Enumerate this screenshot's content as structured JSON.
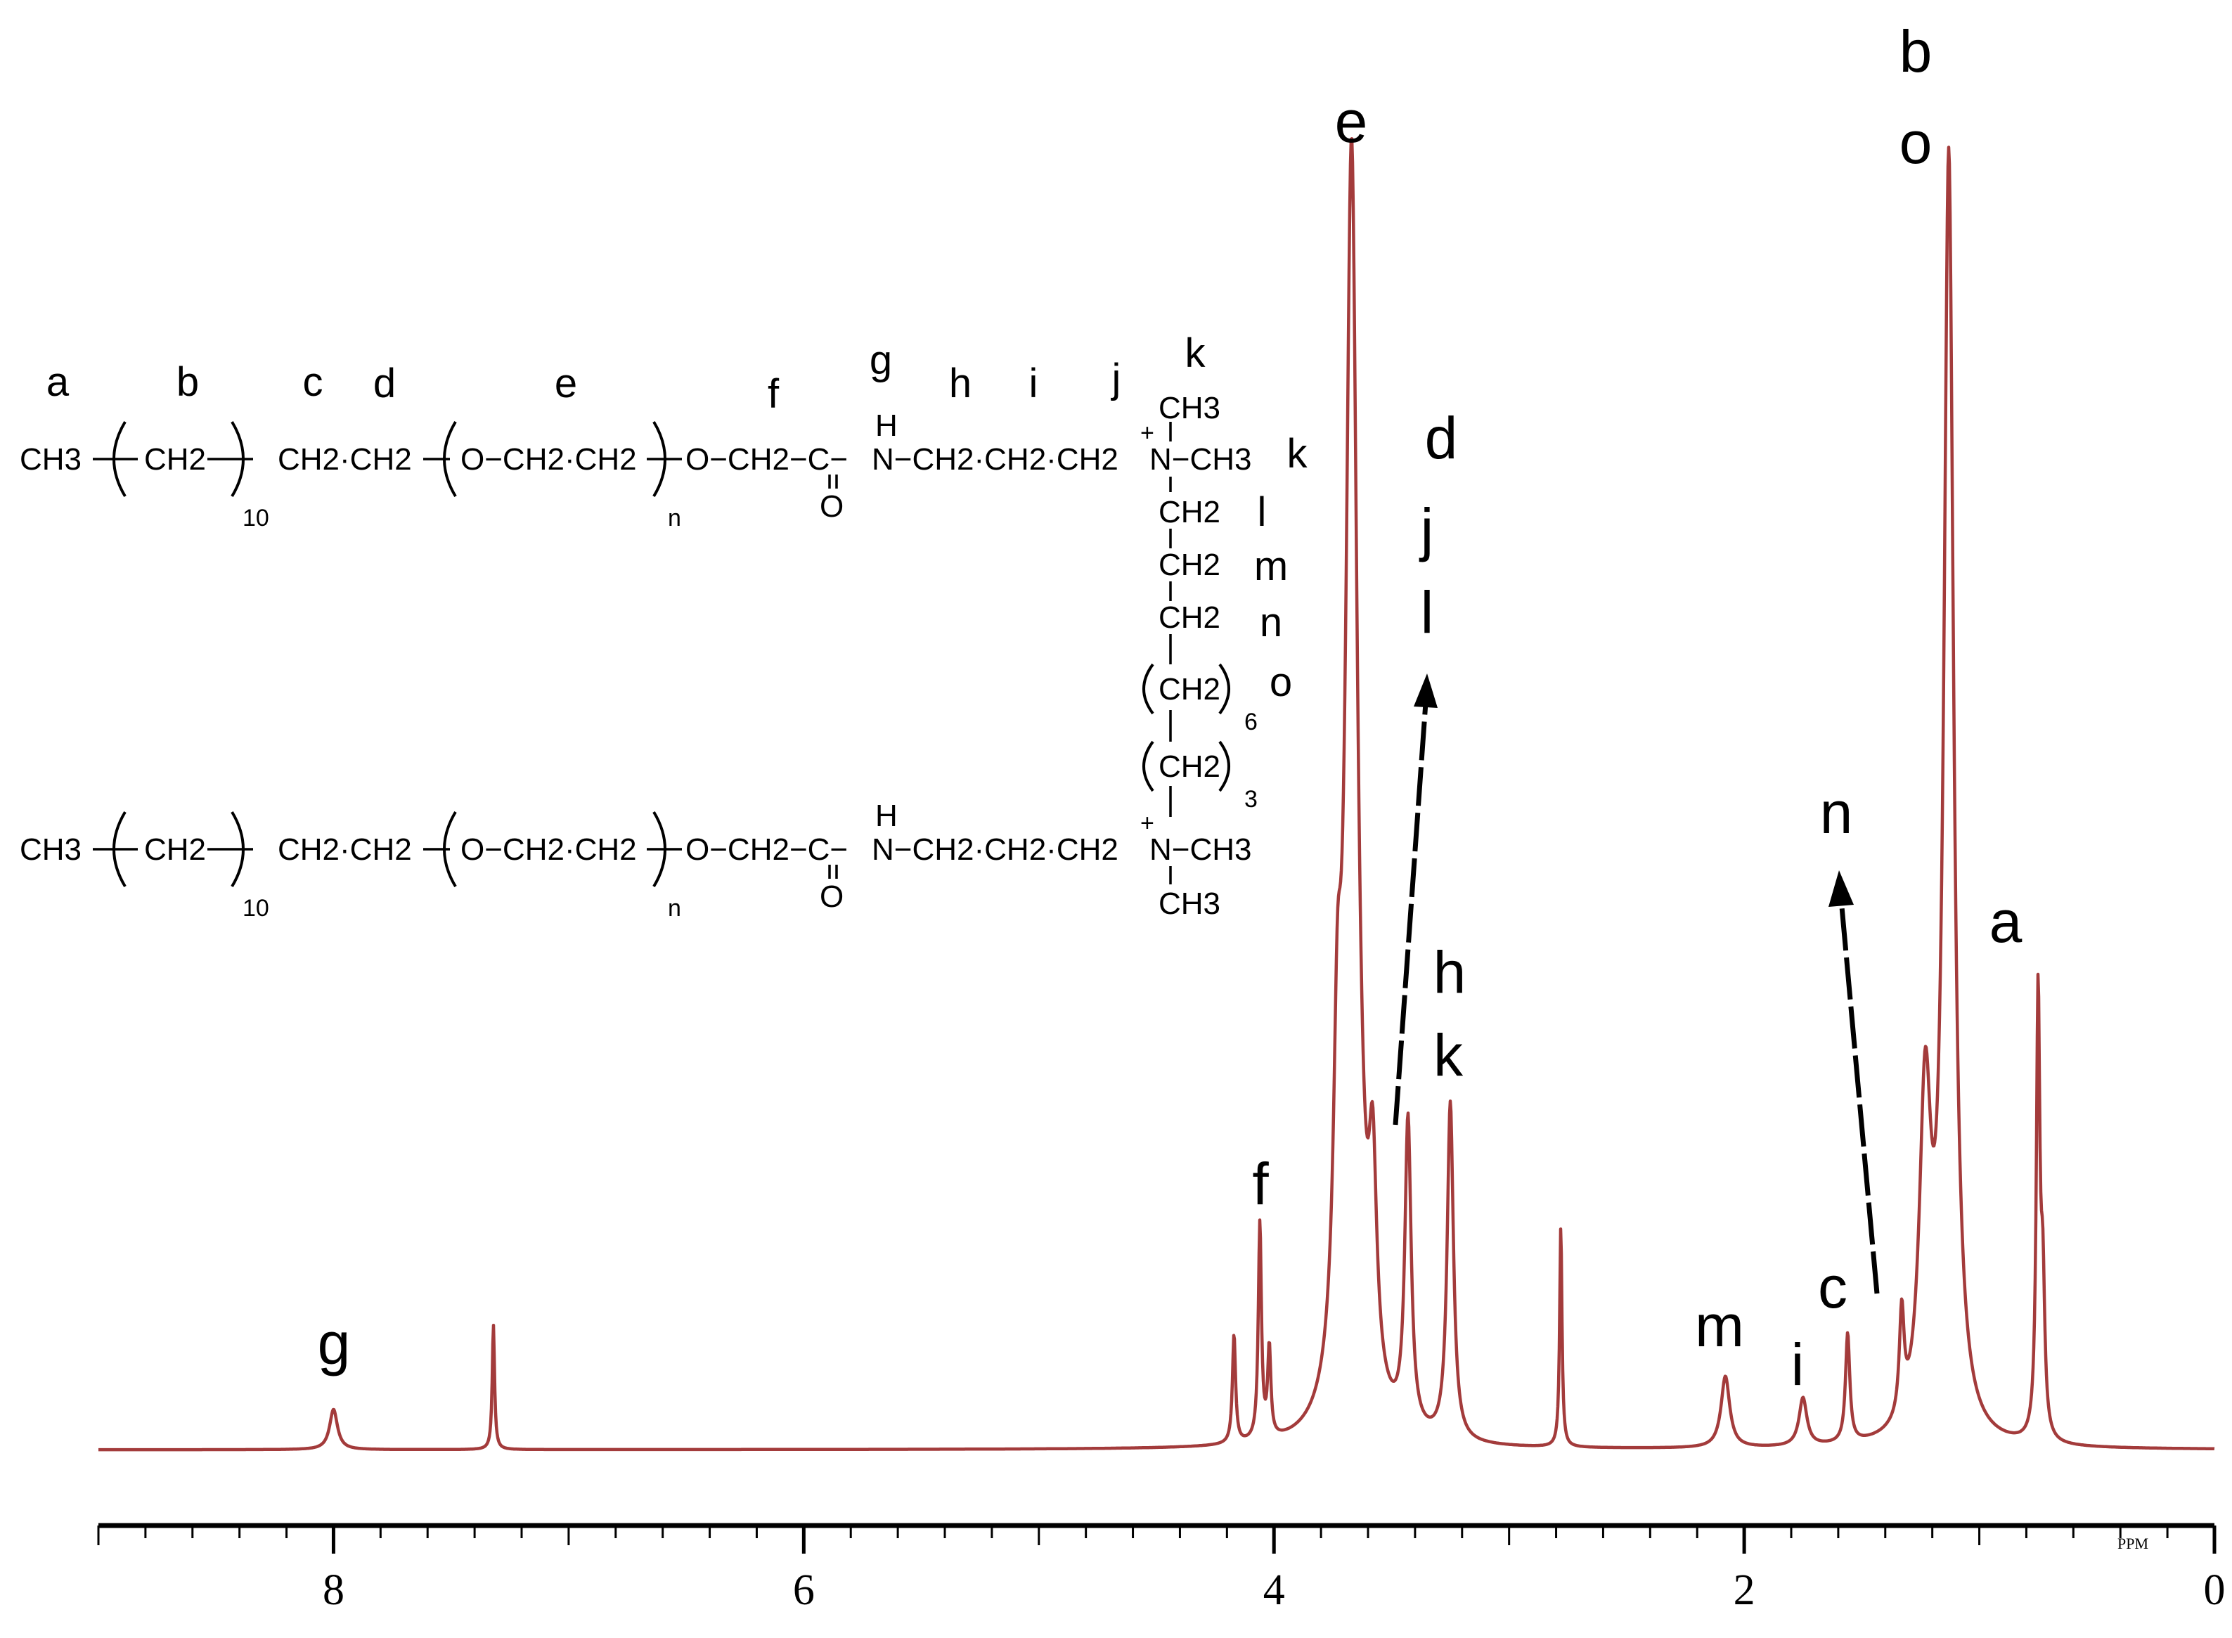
{
  "chart_data": {
    "type": "line",
    "title": "",
    "xlabel": "PPM",
    "ylabel": "",
    "xlim": [
      9.0,
      0
    ],
    "x_ticks": [
      "8",
      "6",
      "4",
      "2",
      "0"
    ],
    "x_minor_step": 0.2,
    "grid": false,
    "line_color": "#a33b3b",
    "baseline": 0.015,
    "peaks": [
      {
        "ppm": 8.0,
        "height": 0.031,
        "width": 0.02,
        "label": "g"
      },
      {
        "ppm": 7.32,
        "height": 0.096,
        "width": 0.006,
        "label": ""
      },
      {
        "ppm": 4.17,
        "height": 0.084,
        "width": 0.008,
        "label": ""
      },
      {
        "ppm": 4.06,
        "height": 0.167,
        "width": 0.008,
        "label": "f"
      },
      {
        "ppm": 4.02,
        "height": 0.069,
        "width": 0.008,
        "label": ""
      },
      {
        "ppm": 3.73,
        "height": 0.21,
        "width": 0.02,
        "label": ""
      },
      {
        "ppm": 3.67,
        "height": 0.98,
        "width": 0.03,
        "label": "e"
      },
      {
        "ppm": 3.58,
        "height": 0.16,
        "width": 0.02,
        "label": ""
      },
      {
        "ppm": 3.43,
        "height": 0.238,
        "width": 0.016,
        "label": "d j l"
      },
      {
        "ppm": 3.25,
        "height": 0.26,
        "width": 0.016,
        "label": "h k"
      },
      {
        "ppm": 2.78,
        "height": 0.17,
        "width": 0.006,
        "label": ""
      },
      {
        "ppm": 2.08,
        "height": 0.055,
        "width": 0.022,
        "label": "m"
      },
      {
        "ppm": 1.75,
        "height": 0.037,
        "width": 0.02,
        "label": "i"
      },
      {
        "ppm": 1.56,
        "height": 0.084,
        "width": 0.011,
        "label": "c"
      },
      {
        "ppm": 1.33,
        "height": 0.08,
        "width": 0.012,
        "label": ""
      },
      {
        "ppm": 1.23,
        "height": 0.25,
        "width": 0.03,
        "label": ""
      },
      {
        "ppm": 1.13,
        "height": 0.98,
        "width": 0.025,
        "label": "b o"
      },
      {
        "ppm": 0.75,
        "height": 0.34,
        "width": 0.009,
        "label": "a"
      },
      {
        "ppm": 0.73,
        "height": 0.11,
        "width": 0.01,
        "label": ""
      }
    ],
    "annotations": [
      "g",
      "f",
      "e",
      "d",
      "j",
      "l",
      "h",
      "k",
      "m",
      "i",
      "c",
      "n",
      "b",
      "o",
      "a"
    ]
  },
  "structure": {
    "row1": {
      "ch3": "CH3",
      "ch2_a": "CH2",
      "sub_10": "10",
      "ch2ch2": "CH2·CH2",
      "o_ch2ch2": "O−CH2·CH2",
      "sub_n": "n",
      "o_ch2_c": "O−CH2−C−",
      "carbonyl_o": "O",
      "amide_h": "H",
      "n_chain": "N−CH2·CH2·CH2",
      "plus": "+",
      "n_quat": "N−CH3",
      "ch3_top": "CH3"
    },
    "spacer": {
      "ch2_l": "CH2",
      "ch2_m": "CH2",
      "ch2_n": "CH2",
      "ch2_o6": "CH2",
      "sub_6": "6",
      "ch2_o3": "CH2",
      "sub_3": "3"
    },
    "row2": {
      "ch3": "CH3",
      "ch2_a": "CH2",
      "sub_10": "10",
      "ch2ch2": "CH2·CH2",
      "o_ch2ch2": "O−CH2·CH2",
      "sub_n": "n",
      "o_ch2_c": "O−CH2−C−",
      "carbonyl_o": "O",
      "amide_h": "H",
      "n_chain": "N−CH2·CH2·CH2",
      "plus": "+",
      "n_quat": "N−CH3",
      "ch3_bottom": "CH3"
    },
    "labels": {
      "a": "a",
      "b": "b",
      "c": "c",
      "d": "d",
      "e": "e",
      "f": "f",
      "g": "g",
      "h": "h",
      "i": "i",
      "j": "j",
      "k1": "k",
      "k2": "k",
      "l": "l",
      "m": "m",
      "n": "n",
      "o": "o"
    }
  }
}
